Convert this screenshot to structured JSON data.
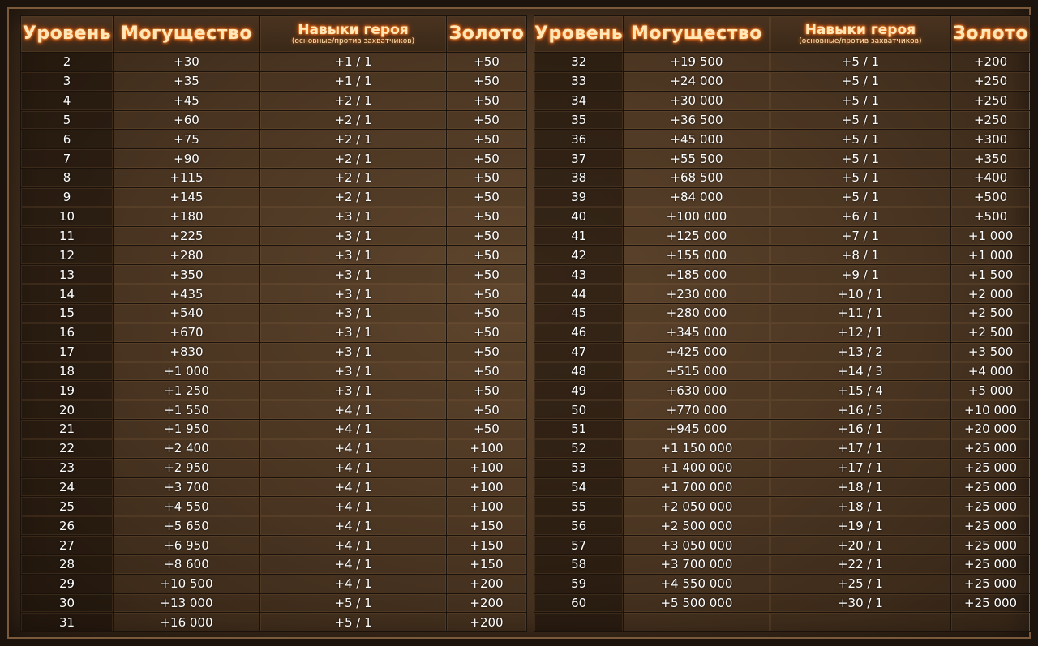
{
  "headers": {
    "level": "Уровень",
    "power": "Могущество",
    "skills": "Навыки героя",
    "skills_sub": "(основные/против захватчиков)",
    "gold": "Золото"
  },
  "left_rows": [
    {
      "level": "2",
      "power": "+30",
      "skills": "+1 / 1",
      "gold": "+50"
    },
    {
      "level": "3",
      "power": "+35",
      "skills": "+1 / 1",
      "gold": "+50"
    },
    {
      "level": "4",
      "power": "+45",
      "skills": "+2 / 1",
      "gold": "+50"
    },
    {
      "level": "5",
      "power": "+60",
      "skills": "+2 / 1",
      "gold": "+50"
    },
    {
      "level": "6",
      "power": "+75",
      "skills": "+2 / 1",
      "gold": "+50"
    },
    {
      "level": "7",
      "power": "+90",
      "skills": "+2 / 1",
      "gold": "+50"
    },
    {
      "level": "8",
      "power": "+115",
      "skills": "+2 / 1",
      "gold": "+50"
    },
    {
      "level": "9",
      "power": "+145",
      "skills": "+2 / 1",
      "gold": "+50"
    },
    {
      "level": "10",
      "power": "+180",
      "skills": "+3 / 1",
      "gold": "+50"
    },
    {
      "level": "11",
      "power": "+225",
      "skills": "+3 / 1",
      "gold": "+50"
    },
    {
      "level": "12",
      "power": "+280",
      "skills": "+3 / 1",
      "gold": "+50"
    },
    {
      "level": "13",
      "power": "+350",
      "skills": "+3 / 1",
      "gold": "+50"
    },
    {
      "level": "14",
      "power": "+435",
      "skills": "+3 / 1",
      "gold": "+50"
    },
    {
      "level": "15",
      "power": "+540",
      "skills": "+3 / 1",
      "gold": "+50"
    },
    {
      "level": "16",
      "power": "+670",
      "skills": "+3 / 1",
      "gold": "+50"
    },
    {
      "level": "17",
      "power": "+830",
      "skills": "+3 / 1",
      "gold": "+50"
    },
    {
      "level": "18",
      "power": "+1 000",
      "skills": "+3 / 1",
      "gold": "+50"
    },
    {
      "level": "19",
      "power": "+1 250",
      "skills": "+3 / 1",
      "gold": "+50"
    },
    {
      "level": "20",
      "power": "+1 550",
      "skills": "+4 / 1",
      "gold": "+50"
    },
    {
      "level": "21",
      "power": "+1 950",
      "skills": "+4 / 1",
      "gold": "+50"
    },
    {
      "level": "22",
      "power": "+2 400",
      "skills": "+4 / 1",
      "gold": "+100"
    },
    {
      "level": "23",
      "power": "+2 950",
      "skills": "+4 / 1",
      "gold": "+100"
    },
    {
      "level": "24",
      "power": "+3 700",
      "skills": "+4 / 1",
      "gold": "+100"
    },
    {
      "level": "25",
      "power": "+4 550",
      "skills": "+4 / 1",
      "gold": "+100"
    },
    {
      "level": "26",
      "power": "+5 650",
      "skills": "+4 / 1",
      "gold": "+150"
    },
    {
      "level": "27",
      "power": "+6 950",
      "skills": "+4 / 1",
      "gold": "+150"
    },
    {
      "level": "28",
      "power": "+8 600",
      "skills": "+4 / 1",
      "gold": "+150"
    },
    {
      "level": "29",
      "power": "+10 500",
      "skills": "+4 / 1",
      "gold": "+200"
    },
    {
      "level": "30",
      "power": "+13 000",
      "skills": "+5 / 1",
      "gold": "+200"
    },
    {
      "level": "31",
      "power": "+16 000",
      "skills": "+5 / 1",
      "gold": "+200"
    }
  ],
  "right_rows": [
    {
      "level": "32",
      "power": "+19 500",
      "skills": "+5 / 1",
      "gold": "+200"
    },
    {
      "level": "33",
      "power": "+24 000",
      "skills": "+5 / 1",
      "gold": "+250"
    },
    {
      "level": "34",
      "power": "+30 000",
      "skills": "+5 / 1",
      "gold": "+250"
    },
    {
      "level": "35",
      "power": "+36 500",
      "skills": "+5 / 1",
      "gold": "+250"
    },
    {
      "level": "36",
      "power": "+45 000",
      "skills": "+5 / 1",
      "gold": "+300"
    },
    {
      "level": "37",
      "power": "+55 500",
      "skills": "+5 / 1",
      "gold": "+350"
    },
    {
      "level": "38",
      "power": "+68 500",
      "skills": "+5 / 1",
      "gold": "+400"
    },
    {
      "level": "39",
      "power": "+84 000",
      "skills": "+5 / 1",
      "gold": "+500"
    },
    {
      "level": "40",
      "power": "+100 000",
      "skills": "+6 / 1",
      "gold": "+500"
    },
    {
      "level": "41",
      "power": "+125 000",
      "skills": "+7 / 1",
      "gold": "+1 000"
    },
    {
      "level": "42",
      "power": "+155 000",
      "skills": "+8 / 1",
      "gold": "+1 000"
    },
    {
      "level": "43",
      "power": "+185 000",
      "skills": "+9 / 1",
      "gold": "+1 500"
    },
    {
      "level": "44",
      "power": "+230 000",
      "skills": "+10 / 1",
      "gold": "+2 000"
    },
    {
      "level": "45",
      "power": "+280 000",
      "skills": "+11 / 1",
      "gold": "+2 500"
    },
    {
      "level": "46",
      "power": "+345 000",
      "skills": "+12 / 1",
      "gold": "+2 500"
    },
    {
      "level": "47",
      "power": "+425 000",
      "skills": "+13 / 2",
      "gold": "+3 500"
    },
    {
      "level": "48",
      "power": "+515 000",
      "skills": "+14 / 3",
      "gold": "+4 000"
    },
    {
      "level": "49",
      "power": "+630 000",
      "skills": "+15 / 4",
      "gold": "+5 000"
    },
    {
      "level": "50",
      "power": "+770 000",
      "skills": "+16 / 5",
      "gold": "+10 000"
    },
    {
      "level": "51",
      "power": "+945 000",
      "skills": "+16 / 1",
      "gold": "+20 000"
    },
    {
      "level": "52",
      "power": "+1 150 000",
      "skills": "+17 / 1",
      "gold": "+25 000"
    },
    {
      "level": "53",
      "power": "+1 400 000",
      "skills": "+17 / 1",
      "gold": "+25 000"
    },
    {
      "level": "54",
      "power": "+1 700 000",
      "skills": "+18 / 1",
      "gold": "+25 000"
    },
    {
      "level": "55",
      "power": "+2 050 000",
      "skills": "+18 / 1",
      "gold": "+25 000"
    },
    {
      "level": "56",
      "power": "+2 500 000",
      "skills": "+19 / 1",
      "gold": "+25 000"
    },
    {
      "level": "57",
      "power": "+3 050 000",
      "skills": "+20 / 1",
      "gold": "+25 000"
    },
    {
      "level": "58",
      "power": "+3 700 000",
      "skills": "+22 / 1",
      "gold": "+25 000"
    },
    {
      "level": "59",
      "power": "+4 550 000",
      "skills": "+25 / 1",
      "gold": "+25 000"
    },
    {
      "level": "60",
      "power": "+5 500 000",
      "skills": "+30 / 1",
      "gold": "+25 000"
    },
    {
      "level": "",
      "power": "",
      "skills": "",
      "gold": ""
    }
  ]
}
